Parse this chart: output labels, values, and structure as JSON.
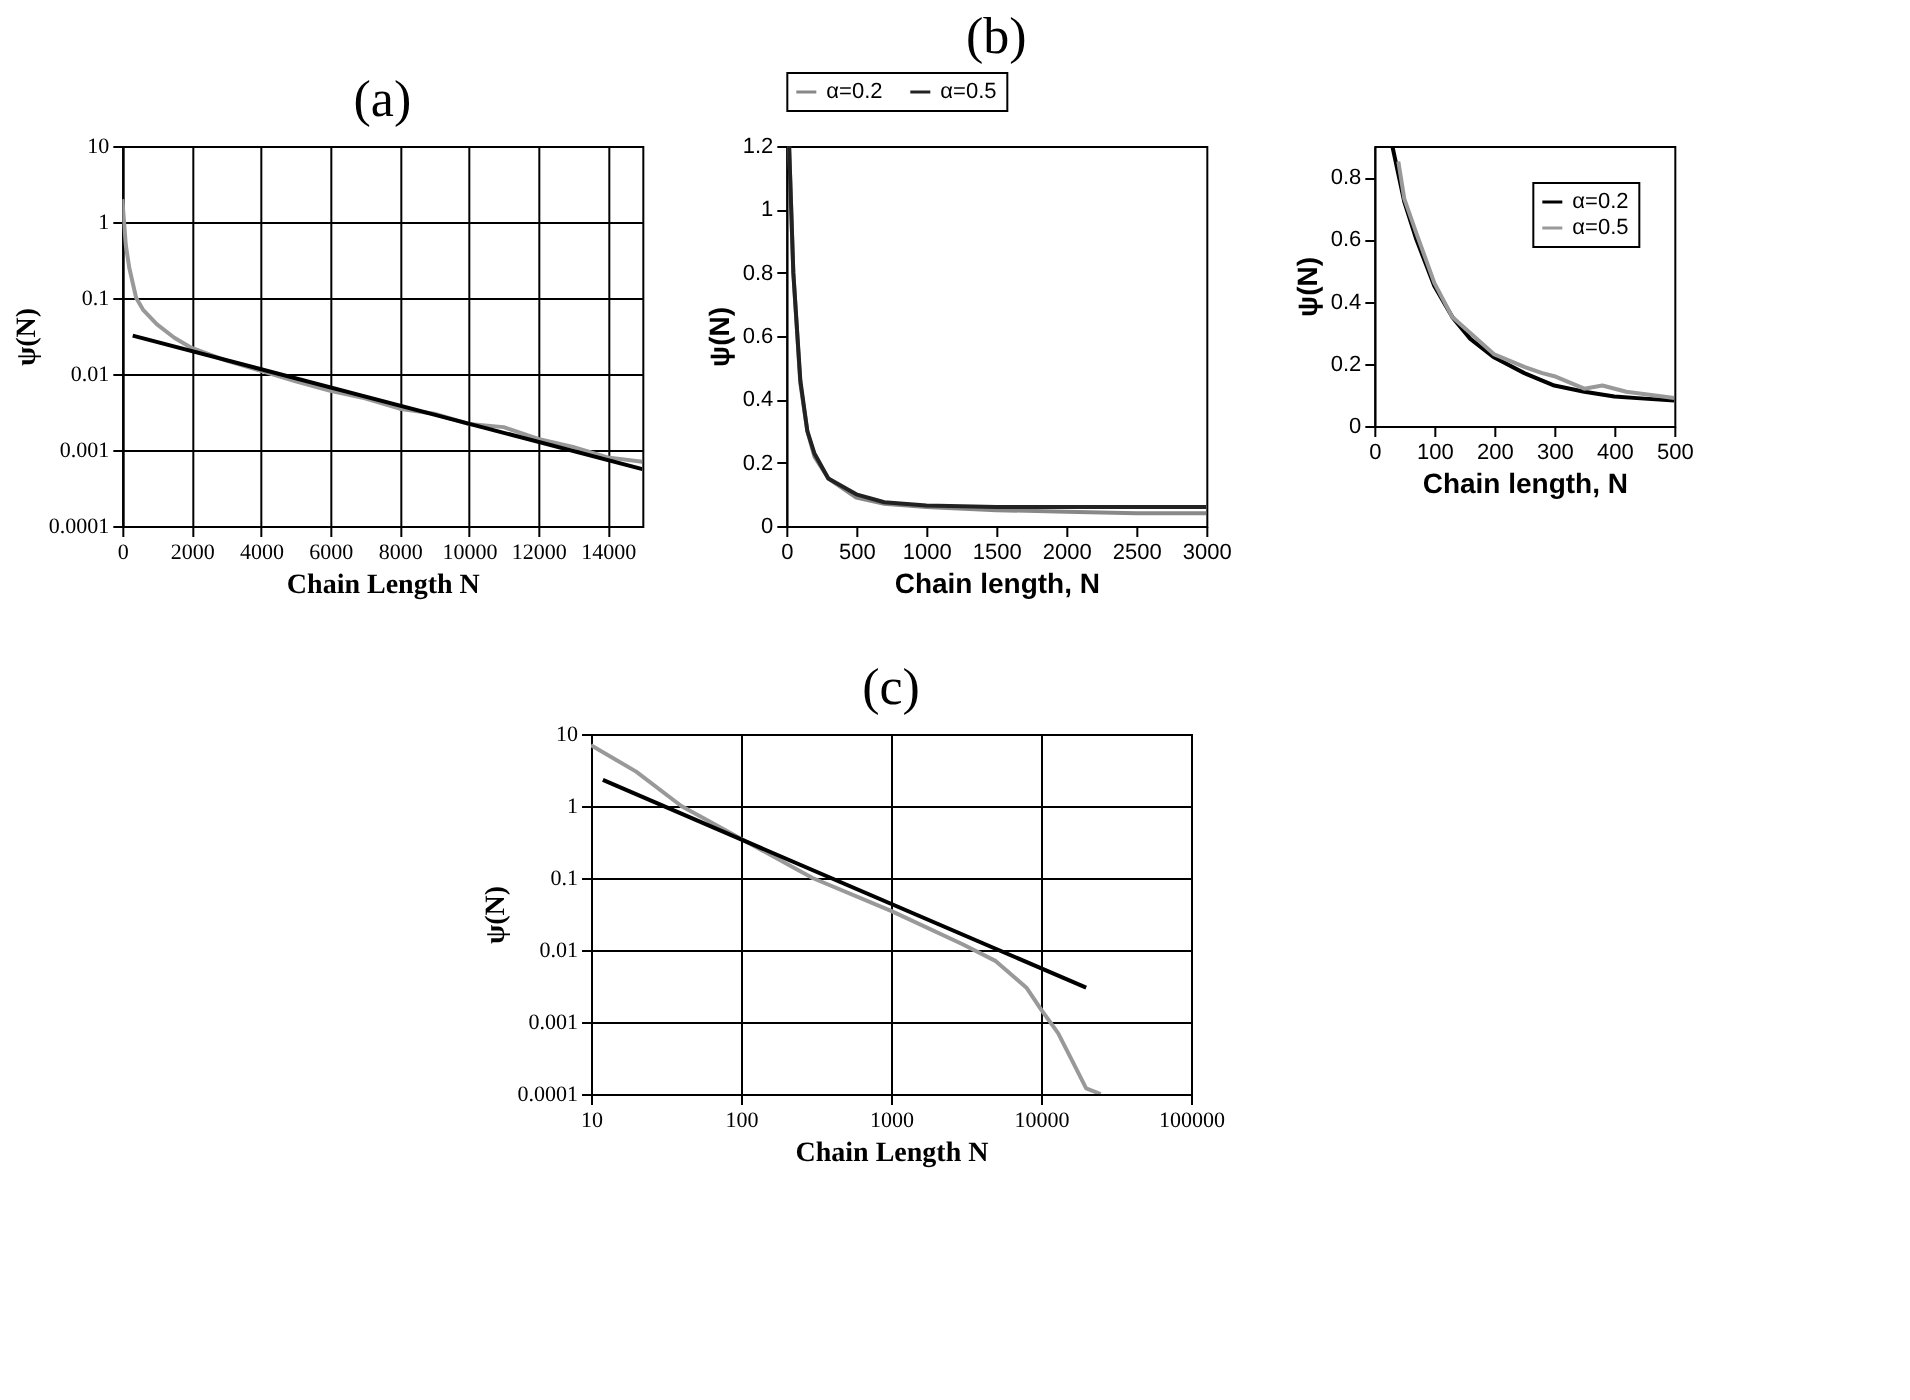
{
  "chart_data": [
    {
      "type": "line",
      "title": "(a)",
      "xlabel": "Chain Length N",
      "ylabel": "ψ(N)",
      "log": "y",
      "grid": true,
      "legend": false,
      "xlim": [
        0,
        15000
      ],
      "xticks": [
        0,
        2000,
        4000,
        6000,
        8000,
        10000,
        12000,
        14000
      ],
      "ylim": [
        0.0001,
        10
      ],
      "yticks": [
        0.0001,
        0.001,
        0.01,
        0.1,
        1,
        10
      ],
      "series": [
        {
          "color": "#999999",
          "x": [
            0,
            100,
            200,
            400,
            600,
            1000,
            1500,
            2000,
            3000,
            4000,
            5000,
            6000,
            7000,
            8000,
            9000,
            10000,
            11000,
            12000,
            13000,
            14000,
            15000
          ],
          "values": [
            2,
            0.5,
            0.25,
            0.1,
            0.07,
            0.045,
            0.03,
            0.022,
            0.015,
            0.011,
            0.008,
            0.006,
            0.0048,
            0.0035,
            0.003,
            0.0022,
            0.002,
            0.0014,
            0.0011,
            0.0008,
            0.0007
          ]
        },
        {
          "color": "#000000",
          "x": [
            300,
            15000
          ],
          "values": [
            0.032,
            0.00056
          ]
        }
      ]
    },
    {
      "type": "line",
      "title": "(b)",
      "xlabel": "Chain length, N",
      "ylabel": "ψ(N)",
      "grid": false,
      "legend": "top",
      "xlim": [
        0,
        3000
      ],
      "xticks": [
        0,
        500,
        1000,
        1500,
        2000,
        2500,
        3000
      ],
      "ylim": [
        0,
        1.2
      ],
      "yticks": [
        0,
        0.2,
        0.4,
        0.6,
        0.8,
        1,
        1.2
      ],
      "series": [
        {
          "name": "α=0.2",
          "color": "#888888",
          "x": [
            20,
            50,
            100,
            150,
            200,
            300,
            500,
            700,
            1000,
            1500,
            2000,
            2500,
            3000
          ],
          "values": [
            1.2,
            0.8,
            0.45,
            0.3,
            0.22,
            0.15,
            0.09,
            0.07,
            0.06,
            0.05,
            0.045,
            0.04,
            0.04
          ]
        },
        {
          "name": "α=0.5",
          "color": "#222222",
          "x": [
            20,
            50,
            100,
            150,
            200,
            300,
            500,
            700,
            1000,
            1500,
            2000,
            2500,
            3000
          ],
          "values": [
            1.2,
            0.8,
            0.46,
            0.3,
            0.23,
            0.15,
            0.1,
            0.075,
            0.065,
            0.06,
            0.06,
            0.06,
            0.06
          ]
        }
      ]
    },
    {
      "type": "line",
      "xlabel": "Chain length, N",
      "ylabel": "ψ(N)",
      "grid": false,
      "legend": "top right",
      "xlim": [
        0,
        500
      ],
      "xticks": [
        0,
        100,
        200,
        300,
        400,
        500
      ],
      "ylim": [
        0,
        0.9
      ],
      "yticks": [
        0,
        0.2,
        0.4,
        0.6,
        0.8
      ],
      "series": [
        {
          "name": "α=0.2",
          "color": "#000000",
          "x": [
            30,
            50,
            70,
            100,
            130,
            160,
            200,
            250,
            300,
            350,
            400,
            450,
            500
          ],
          "values": [
            0.9,
            0.72,
            0.6,
            0.45,
            0.35,
            0.28,
            0.22,
            0.17,
            0.13,
            0.11,
            0.095,
            0.088,
            0.082
          ]
        },
        {
          "name": "α=0.5",
          "color": "#999999",
          "x": [
            40,
            50,
            70,
            100,
            130,
            200,
            250,
            280,
            300,
            350,
            380,
            420,
            500
          ],
          "values": [
            0.85,
            0.73,
            0.62,
            0.46,
            0.35,
            0.23,
            0.19,
            0.17,
            0.16,
            0.12,
            0.13,
            0.11,
            0.09
          ]
        }
      ]
    },
    {
      "type": "line",
      "title": "(c)",
      "xlabel": "Chain Length N",
      "ylabel": "ψ(N)",
      "log": "xy",
      "grid": true,
      "legend": false,
      "xlim": [
        10,
        100000
      ],
      "xticks": [
        10,
        100,
        1000,
        10000,
        100000
      ],
      "ylim": [
        0.0001,
        10
      ],
      "yticks": [
        0.0001,
        0.001,
        0.01,
        0.1,
        1,
        10
      ],
      "series": [
        {
          "color": "#999999",
          "x": [
            10,
            20,
            40,
            100,
            300,
            1000,
            3000,
            5000,
            8000,
            10000,
            13000,
            16000,
            20000,
            25000
          ],
          "values": [
            7,
            3,
            1,
            0.35,
            0.1,
            0.035,
            0.012,
            0.007,
            0.003,
            0.0015,
            0.0007,
            0.0003,
            0.00012,
            0.0001
          ]
        },
        {
          "color": "#000000",
          "x": [
            12,
            20000
          ],
          "values": [
            2.3,
            0.003
          ]
        }
      ]
    }
  ]
}
